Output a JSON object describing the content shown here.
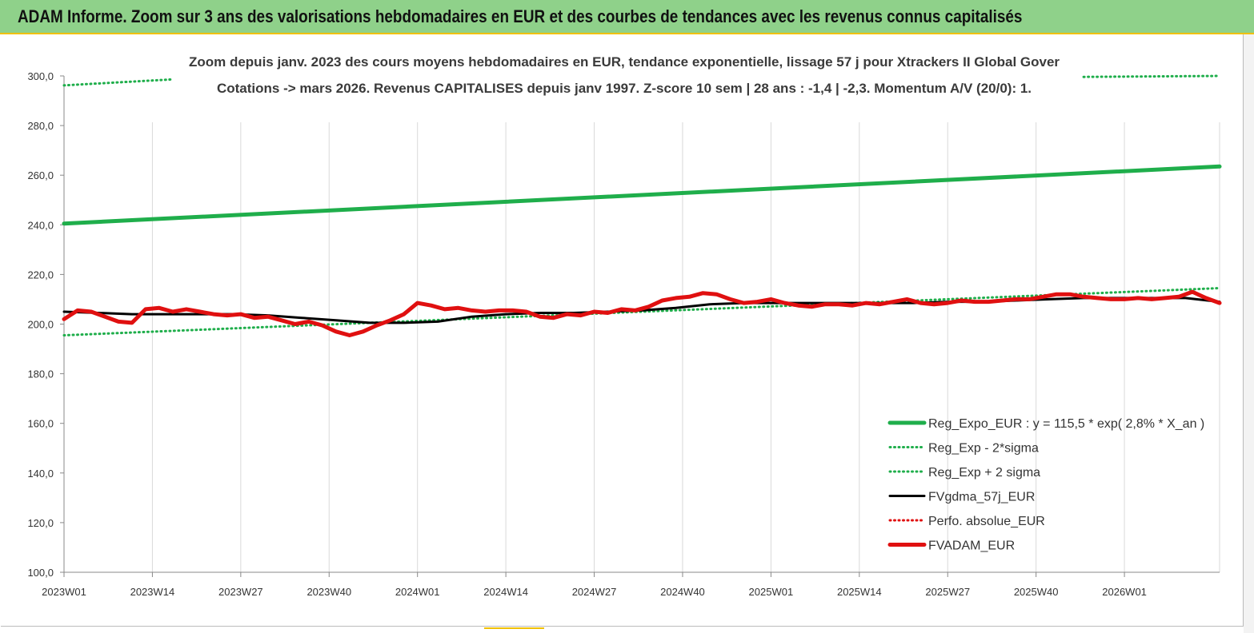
{
  "banner": {
    "title": "ADAM Informe. Zoom sur 3 ans des valorisations hebdomadaires en EUR et des courbes de tendances avec les revenus connus capitalisés"
  },
  "colors": {
    "banner_bg": "#8fd18a",
    "green": "#1fae4b",
    "black": "#000000",
    "red": "#e01010",
    "grid": "#d9d9d9"
  },
  "chart_data": {
    "type": "line",
    "title": "Zoom depuis janv. 2023 des cours moyens hebdomadaires en EUR, tendance exponentielle, lissage 57 j pour Xtrackers II Global Gover",
    "subtitle": "Cotations -> mars 2026. Revenus CAPITALISES depuis janv 1997. Z-score 10 sem | 28 ans : -1,4 | -2,3. Momentum A/V (20/0): 1.",
    "xlabel": "",
    "ylabel": "",
    "ylim": [
      100,
      300
    ],
    "yticks": [
      "100,0",
      "120,0",
      "140,0",
      "160,0",
      "180,0",
      "200,0",
      "220,0",
      "240,0",
      "260,0",
      "280,0",
      "300,0"
    ],
    "xtick_labels": [
      "2023W01",
      "2023W14",
      "2023W27",
      "2023W40",
      "2024W01",
      "2024W14",
      "2024W27",
      "2024W40",
      "2025W01",
      "2025W14",
      "2025W27",
      "2025W40",
      "2026W01"
    ],
    "x_weeks": 170,
    "grid": "vertical",
    "legend_position": "bottom-right",
    "series": [
      {
        "name": "Reg_Expo_EUR : y = 115,5 * exp( 2,8% *  X_an )",
        "style": "solid-thick",
        "color": "#1fae4b",
        "x": [
          0,
          170
        ],
        "values": [
          240.5,
          263.5
        ]
      },
      {
        "name": "Reg_Exp - 2*sigma",
        "style": "dotted",
        "color": "#1fae4b",
        "x": [
          0,
          170
        ],
        "values": [
          195.5,
          214.5
        ]
      },
      {
        "name": "Reg_Exp + 2 sigma",
        "style": "dotted",
        "color": "#1fae4b",
        "segments": [
          {
            "x": [
              0,
              16
            ],
            "values": [
              296.2,
              298.6
            ]
          },
          {
            "x": [
              150,
              170
            ],
            "values": [
              299.6,
              300.0
            ]
          }
        ]
      },
      {
        "name": "FVgdma_57j_EUR",
        "style": "solid",
        "color": "#000000",
        "x": [
          0,
          5,
          10,
          15,
          20,
          25,
          30,
          35,
          40,
          45,
          50,
          55,
          60,
          65,
          70,
          75,
          80,
          85,
          90,
          95,
          100,
          105,
          110,
          115,
          120,
          125,
          130,
          135,
          140,
          145,
          150,
          155,
          160,
          165,
          170
        ],
        "values": [
          205,
          204.5,
          204,
          204,
          204,
          204,
          203.5,
          202.5,
          201.5,
          200.5,
          200.5,
          201,
          203,
          204,
          204.5,
          204.5,
          205,
          205.5,
          206.5,
          208,
          208.5,
          208.5,
          208.5,
          208.5,
          208.5,
          208.5,
          209,
          209,
          209.5,
          210,
          210.5,
          210.5,
          210.5,
          210.5,
          209
        ]
      },
      {
        "name": "Perfo. absolue_EUR",
        "style": "dotted",
        "color": "#e01010",
        "x": [],
        "values": []
      },
      {
        "name": "FVADAM_EUR",
        "style": "solid-thick",
        "color": "#e01010",
        "x": [
          0,
          2,
          4,
          6,
          8,
          10,
          12,
          14,
          16,
          18,
          20,
          22,
          24,
          26,
          28,
          30,
          32,
          34,
          36,
          38,
          40,
          42,
          44,
          46,
          48,
          50,
          52,
          54,
          56,
          58,
          60,
          62,
          64,
          66,
          68,
          70,
          72,
          74,
          76,
          78,
          80,
          82,
          84,
          86,
          88,
          90,
          92,
          94,
          96,
          98,
          100,
          102,
          104,
          106,
          108,
          110,
          112,
          114,
          116,
          118,
          120,
          122,
          124,
          126,
          128,
          130,
          132,
          134,
          136,
          138,
          140,
          142,
          144,
          146,
          148,
          150,
          152,
          154,
          156,
          158,
          160,
          162,
          164,
          166,
          168,
          170
        ],
        "values": [
          202,
          205.5,
          205,
          203,
          201,
          200.5,
          206,
          206.5,
          205,
          206,
          205,
          204,
          203.5,
          204,
          202.5,
          203,
          201.5,
          200,
          201,
          199.5,
          197,
          195.5,
          197,
          199.5,
          201.5,
          204,
          208.5,
          207.5,
          206,
          206.5,
          205.5,
          205,
          205.5,
          205.5,
          205,
          203,
          202.5,
          204,
          203.5,
          205,
          204.5,
          206,
          205.5,
          207,
          209.5,
          210.5,
          211,
          212.5,
          212,
          210,
          208.5,
          209,
          210,
          208.5,
          207.5,
          207,
          208,
          208,
          207.5,
          208.5,
          208,
          209,
          210,
          208.5,
          208,
          208.5,
          209.5,
          209,
          209,
          209.5,
          210,
          210,
          211,
          212,
          212,
          211,
          210.5,
          210,
          210,
          210.5,
          210,
          210.5,
          211,
          213,
          210.5,
          208.5
        ]
      }
    ]
  }
}
